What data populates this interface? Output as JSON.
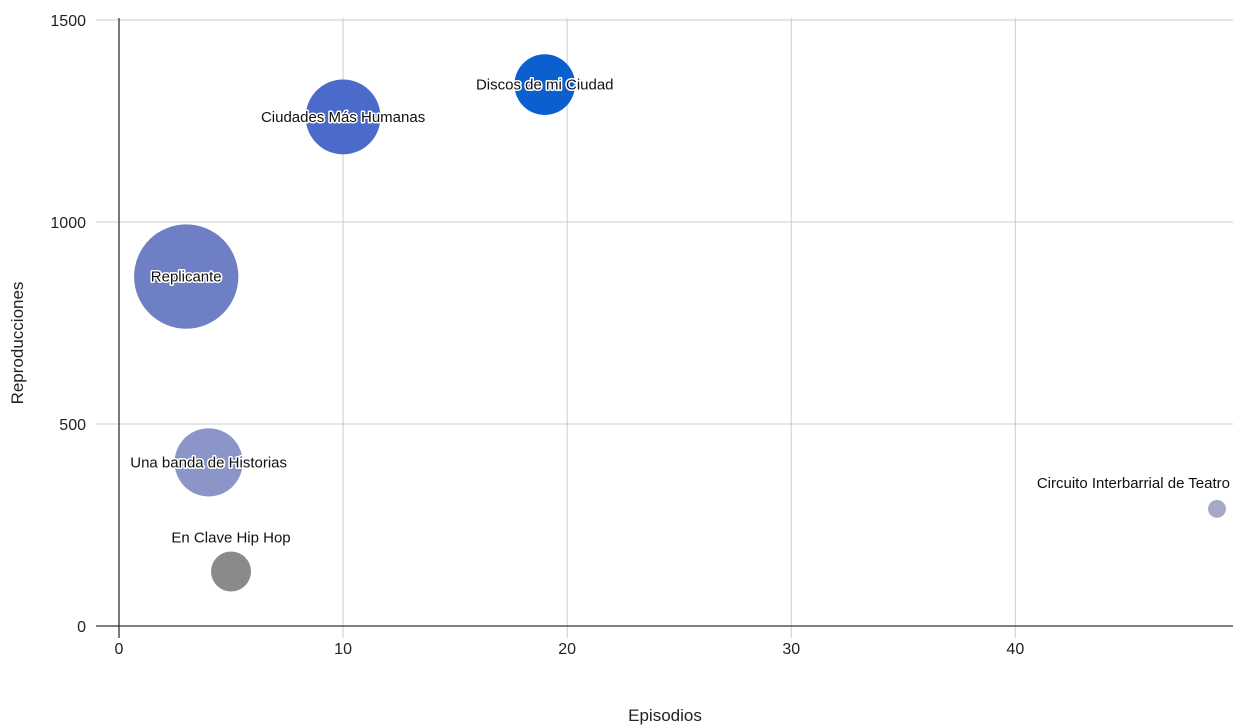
{
  "chart_data": {
    "type": "scatter",
    "subtype": "bubble",
    "xlabel": "Episodios",
    "ylabel": "Reproducciones",
    "xlim": [
      0,
      49
    ],
    "ylim": [
      0,
      1500
    ],
    "x_ticks": [
      0,
      10,
      20,
      30,
      40
    ],
    "y_ticks": [
      0,
      500,
      1000,
      1500
    ],
    "grid": true,
    "legend": "none",
    "points": [
      {
        "label": "Discos de mi Ciudad",
        "x": 19,
        "y": 1340,
        "size": 2.3,
        "color": "#0b5fcf",
        "label_pos": "center"
      },
      {
        "label": "Ciudades Más Humanas",
        "x": 10,
        "y": 1260,
        "size": 3.5,
        "color": "#4a6bc9",
        "label_pos": "center"
      },
      {
        "label": "Replicante",
        "x": 3,
        "y": 865,
        "size": 6.8,
        "color": "#6e7fc6",
        "label_pos": "center"
      },
      {
        "label": "Una banda de Historias",
        "x": 4,
        "y": 405,
        "size": 2.9,
        "color": "#8b95c8",
        "label_pos": "center"
      },
      {
        "label": "En Clave Hip Hop",
        "x": 5,
        "y": 135,
        "size": 1.0,
        "color": "#8a8a8a",
        "label_pos": "above"
      },
      {
        "label": "Circuito Interbarrial de Teatro",
        "x": 49,
        "y": 290,
        "size": 0.2,
        "color": "#a6a9c6",
        "label_pos": "above-left"
      }
    ]
  }
}
